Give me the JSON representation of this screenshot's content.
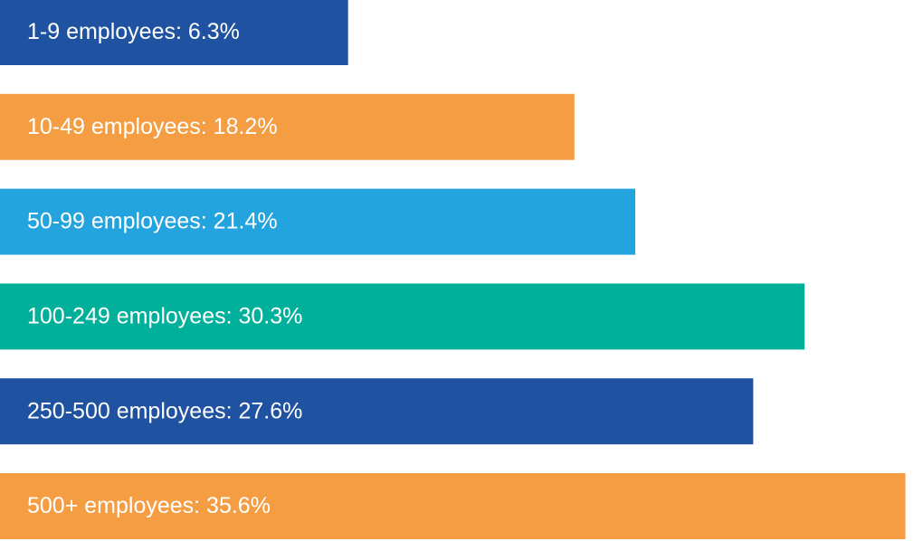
{
  "chart_data": {
    "type": "barh",
    "values": [
      6.3,
      18.2,
      21.4,
      30.3,
      27.6,
      35.6
    ],
    "value_labels": [
      "1-9 employees: 6.3%",
      "10-49 employees: 18.2%",
      "50-99 employees: 21.4%",
      "100-249 employees: 30.3%",
      "250-500 employees: 27.6%",
      "500+ employees: 35.6%"
    ],
    "colors": [
      "#1f52a0",
      "#f59d42",
      "#24a4de",
      "#00b09a",
      "#1f52a0",
      "#f59d42"
    ],
    "xlim": [
      -12,
      36
    ]
  }
}
